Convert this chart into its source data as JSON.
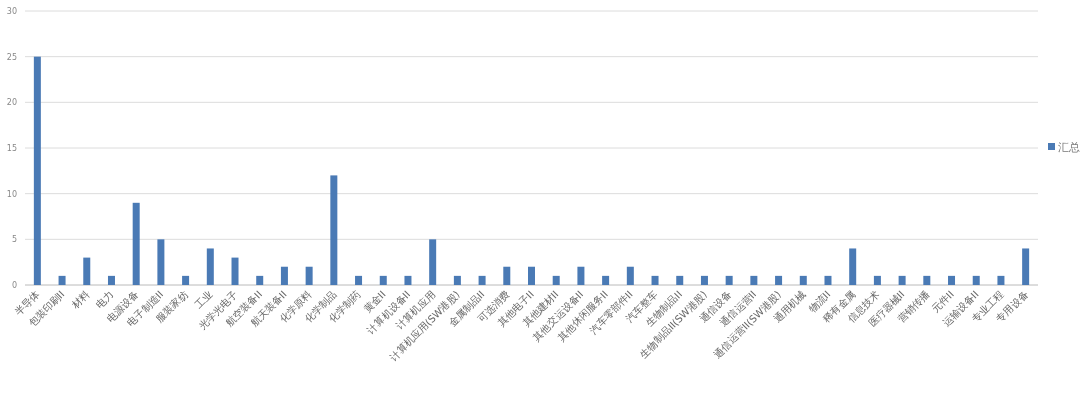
{
  "chart_data": {
    "type": "bar",
    "categories": [
      "半导体",
      "包装印刷II",
      "材料",
      "电力",
      "电源设备",
      "电子制造II",
      "服装家纺",
      "工业",
      "光学光电子",
      "航空装备II",
      "航天装备II",
      "化学原料",
      "化学制品",
      "化学制药",
      "黄金II",
      "计算机设备II",
      "计算机应用",
      "计算机应用(SW港股)",
      "金属制品II",
      "可选消费",
      "其他电子II",
      "其他建材II",
      "其他交运设备II",
      "其他休闲服务II",
      "汽车零部件II",
      "汽车整车",
      "生物制品II",
      "生物制品II(SW港股)",
      "通信设备",
      "通信运营II",
      "通信运营II(SW港股)",
      "通用机械",
      "物流II",
      "稀有金属",
      "信息技术",
      "医疗器械II",
      "营销传播",
      "元件II",
      "运输设备II",
      "专业工程",
      "专用设备"
    ],
    "series": [
      {
        "name": "汇总",
        "color": "#4a7ab5",
        "values": [
          25,
          1,
          3,
          1,
          9,
          5,
          1,
          4,
          3,
          1,
          2,
          2,
          12,
          1,
          1,
          1,
          5,
          1,
          1,
          2,
          2,
          1,
          2,
          1,
          2,
          1,
          1,
          1,
          1,
          1,
          1,
          1,
          1,
          4,
          1,
          1,
          1,
          1,
          1,
          1,
          4
        ]
      }
    ],
    "ylim": [
      0,
      30
    ],
    "yticks": [
      0,
      5,
      10,
      15,
      20,
      25,
      30
    ],
    "grid": "y",
    "legend": "right"
  }
}
